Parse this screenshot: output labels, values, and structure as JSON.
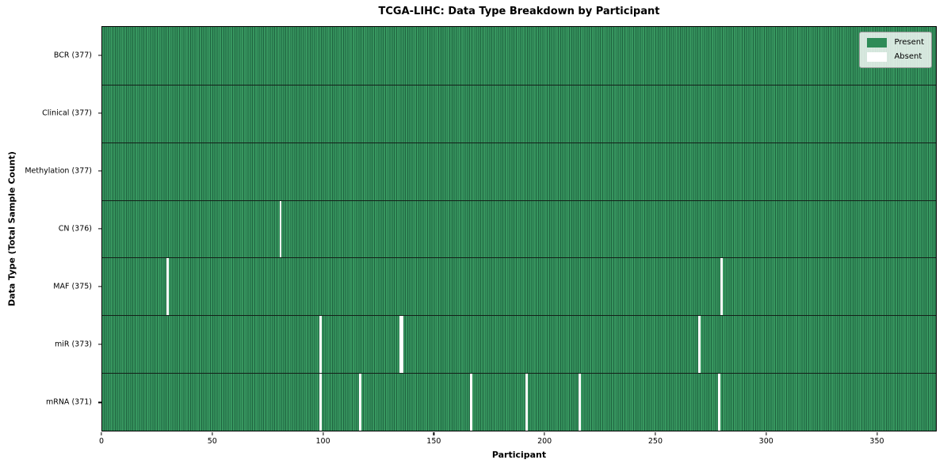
{
  "chart_data": {
    "type": "heatmap",
    "title": "TCGA-LIHC: Data Type Breakdown by Participant",
    "xlabel": "Participant",
    "ylabel": "Data Type (Total Sample Count)",
    "n_participants": 377,
    "xlim": [
      0,
      377
    ],
    "x_ticks": [
      0,
      50,
      100,
      150,
      200,
      250,
      300,
      350
    ],
    "grid": false,
    "legend": {
      "position": "upper right",
      "entries": [
        {
          "label": "Present",
          "color": "#2e8b57"
        },
        {
          "label": "Absent",
          "color": "#ffffff"
        }
      ]
    },
    "rows": [
      {
        "label": "BCR (377)",
        "data_type": "BCR",
        "present_count": 377,
        "absent_participants": []
      },
      {
        "label": "Clinical (377)",
        "data_type": "Clinical",
        "present_count": 377,
        "absent_participants": []
      },
      {
        "label": "Methylation (377)",
        "data_type": "Methylation",
        "present_count": 377,
        "absent_participants": []
      },
      {
        "label": "CN (376)",
        "data_type": "CN",
        "present_count": 376,
        "absent_participants": [
          80
        ]
      },
      {
        "label": "MAF (375)",
        "data_type": "MAF",
        "present_count": 375,
        "absent_participants": [
          29,
          279
        ]
      },
      {
        "label": "miR (373)",
        "data_type": "miR",
        "present_count": 373,
        "absent_participants": [
          98,
          134,
          135,
          269
        ]
      },
      {
        "label": "mRNA (371)",
        "data_type": "mRNA",
        "present_count": 371,
        "absent_participants": [
          98,
          116,
          166,
          191,
          215,
          278
        ]
      }
    ],
    "colors": {
      "present": "#2e8b57",
      "present_stripe_light": "#37965f",
      "present_stripe_dark": "#1f6440",
      "absent": "#ffffff",
      "row_divider": "#142019",
      "spine": "#000000"
    }
  }
}
